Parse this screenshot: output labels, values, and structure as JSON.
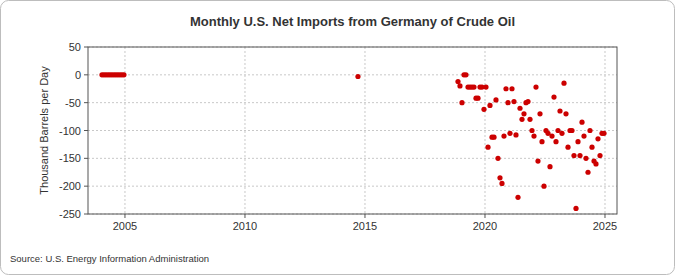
{
  "chart_data": {
    "type": "scatter",
    "title": "Monthly U.S. Net Imports from Germany of Crude Oil",
    "y_label": "Thousand Barrels per Day",
    "source": "Source: U.S. Energy Information Administration",
    "xlim": [
      2003.46,
      2025.5
    ],
    "xticks": [
      2005,
      2010,
      2015,
      2020,
      2025
    ],
    "ylim": [
      -250,
      50
    ],
    "yticks": [
      50,
      0,
      -50,
      -100,
      -150,
      -200,
      -250
    ],
    "grid": true,
    "marker": "circle",
    "color": "#cc0000",
    "x": [
      2004.042,
      2004.125,
      2004.208,
      2004.292,
      2004.375,
      2004.458,
      2004.542,
      2004.625,
      2004.708,
      2004.792,
      2004.875,
      2004.958,
      2014.708,
      2018.875,
      2018.958,
      2019.042,
      2019.125,
      2019.208,
      2019.292,
      2019.375,
      2019.458,
      2019.542,
      2019.625,
      2019.708,
      2019.792,
      2019.875,
      2019.958,
      2020.042,
      2020.125,
      2020.208,
      2020.292,
      2020.375,
      2020.458,
      2020.542,
      2020.625,
      2020.708,
      2020.792,
      2020.875,
      2020.958,
      2021.042,
      2021.125,
      2021.208,
      2021.292,
      2021.375,
      2021.458,
      2021.542,
      2021.625,
      2021.708,
      2021.792,
      2021.875,
      2021.958,
      2022.042,
      2022.125,
      2022.208,
      2022.292,
      2022.375,
      2022.458,
      2022.542,
      2022.625,
      2022.708,
      2022.792,
      2022.875,
      2022.958,
      2023.042,
      2023.125,
      2023.208,
      2023.292,
      2023.375,
      2023.458,
      2023.542,
      2023.625,
      2023.708,
      2023.792,
      2023.875,
      2023.958,
      2024.042,
      2024.125,
      2024.208,
      2024.292,
      2024.375,
      2024.458,
      2024.542,
      2024.625,
      2024.708,
      2024.792,
      2024.875,
      2024.958
    ],
    "values": [
      0,
      0,
      0,
      0,
      0,
      0,
      0,
      0,
      0,
      0,
      0,
      0,
      -3,
      -12,
      -20,
      -50,
      0,
      0,
      -22,
      -22,
      -22,
      -22,
      -42,
      -42,
      -22,
      -22,
      -62,
      -22,
      -130,
      -55,
      -112,
      -112,
      -45,
      -150,
      -185,
      -195,
      -110,
      -25,
      -50,
      -105,
      -25,
      -48,
      -108,
      -220,
      -60,
      -80,
      -70,
      -50,
      -48,
      -80,
      -100,
      -110,
      -22,
      -155,
      -70,
      -120,
      -200,
      -100,
      -105,
      -165,
      -110,
      -40,
      -120,
      -100,
      -65,
      -105,
      -15,
      -70,
      -130,
      -100,
      -100,
      -145,
      -240,
      -120,
      -145,
      -85,
      -110,
      -150,
      -175,
      -100,
      -130,
      -155,
      -160,
      -115,
      -145,
      -105,
      -105
    ]
  }
}
